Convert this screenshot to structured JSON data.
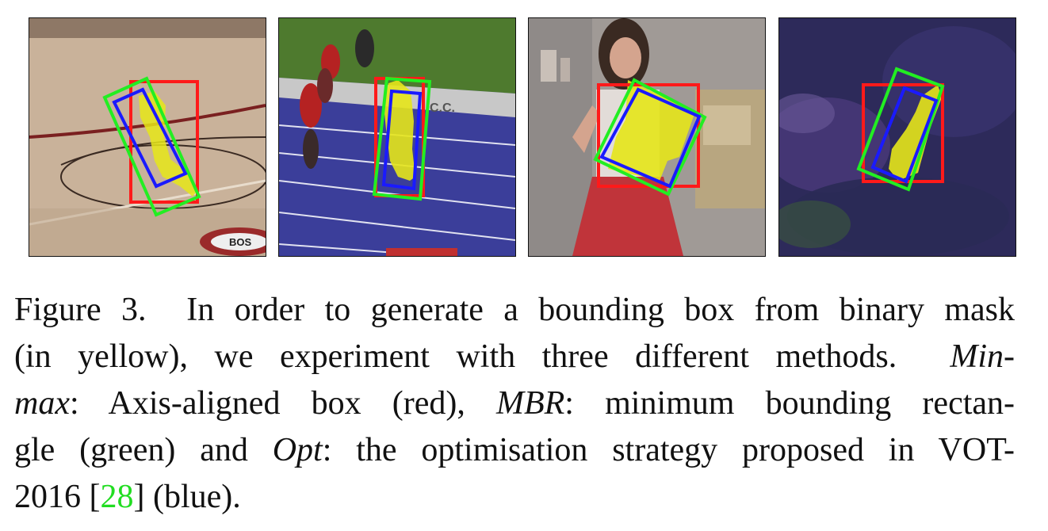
{
  "figure": {
    "panels": [
      {
        "scene": "basketball-court"
      },
      {
        "scene": "running-track"
      },
      {
        "scene": "person-indoors"
      },
      {
        "scene": "dark-foliage"
      }
    ],
    "panel_text": {
      "court_logo": "BOS",
      "track_sign": "C.C."
    },
    "colors": {
      "mask": "#e6e619",
      "minmax_box": "#ff1a1a",
      "mbr_box": "#22ee22",
      "opt_box": "#1a1aff",
      "ref_link": "#22dd22"
    },
    "caption": {
      "label": "Figure 3.",
      "l1": "In order to generate a bounding box from binary mask",
      "l2a": "(in yellow), we experiment with three different methods.",
      "l2b": "Min-",
      "l3a": "max",
      "l3b": ": Axis-aligned box (red), ",
      "l3c": "MBR",
      "l3d": ": minimum bounding rectan-",
      "l4a": "gle (green) and ",
      "l4b": "Opt",
      "l4c": ": the optimisation strategy proposed in VOT-",
      "l5a": "2016 [",
      "l5ref": "28",
      "l5b": "] (blue)."
    }
  }
}
